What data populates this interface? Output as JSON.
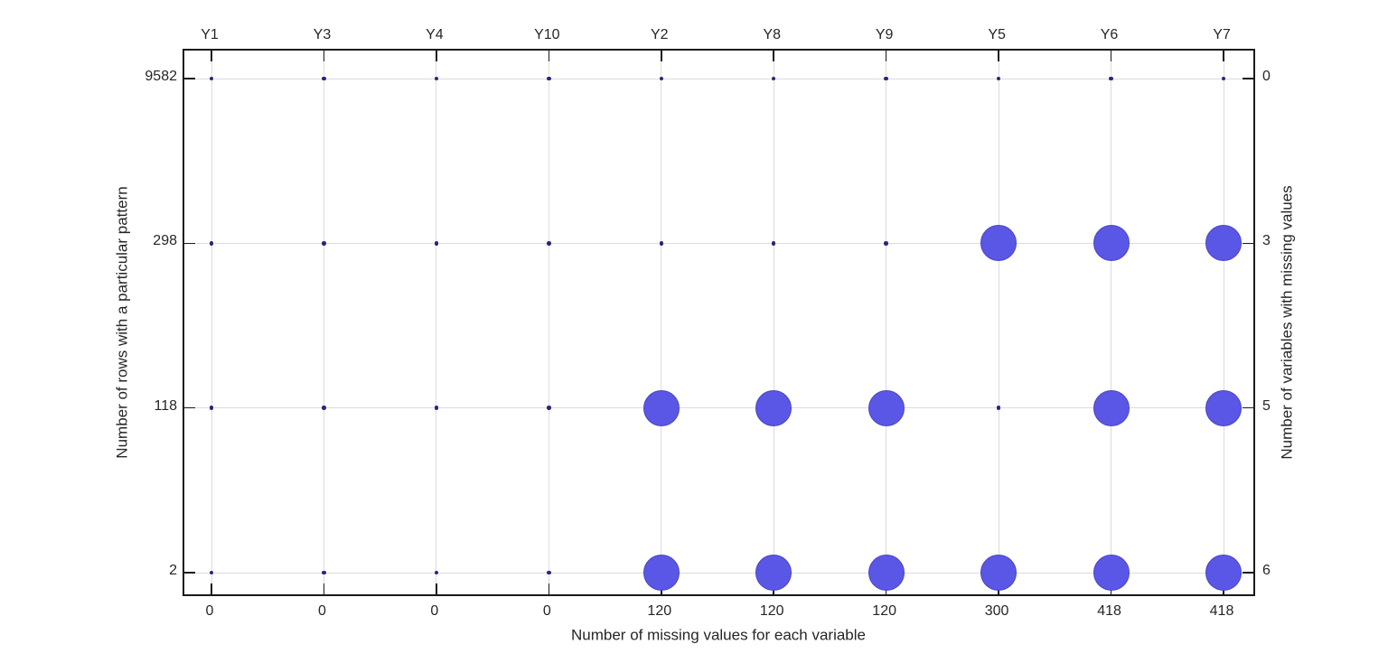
{
  "figure": {
    "background_color": "#ffffff",
    "axis_color": "#1a1a1a",
    "grid_color": "#dcdcdf",
    "text_color": "#262626"
  },
  "chart_data": {
    "type": "scatter",
    "description": "Missing-data pattern bubble plot: large circles mark variables missing in each pattern row, small dots mark observed variables",
    "variables": [
      "Y1",
      "Y3",
      "Y4",
      "Y10",
      "Y2",
      "Y8",
      "Y9",
      "Y5",
      "Y6",
      "Y7"
    ],
    "top_axis": {
      "label": "",
      "tick_labels": [
        "Y1",
        "Y3",
        "Y4",
        "Y10",
        "Y2",
        "Y8",
        "Y9",
        "Y5",
        "Y6",
        "Y7"
      ]
    },
    "bottom_axis": {
      "label": "Number of missing values for each variable",
      "tick_labels": [
        "0",
        "0",
        "0",
        "0",
        "120",
        "120",
        "120",
        "300",
        "418",
        "418"
      ]
    },
    "left_axis": {
      "label": "Number of rows with a particular pattern",
      "tick_labels": [
        "9582",
        "298",
        "118",
        "2"
      ]
    },
    "right_axis": {
      "label": "Number of variables with missing values",
      "tick_labels": [
        "0",
        "3",
        "5",
        "6"
      ]
    },
    "missing_per_variable": [
      0,
      0,
      0,
      0,
      120,
      120,
      120,
      300,
      418,
      418
    ],
    "pattern_row_counts": [
      9582,
      298,
      118,
      2
    ],
    "pattern_vars_missing": [
      0,
      3,
      5,
      6
    ],
    "missing_matrix": [
      [
        0,
        0,
        0,
        0,
        0,
        0,
        0,
        0,
        0,
        0
      ],
      [
        0,
        0,
        0,
        0,
        0,
        0,
        0,
        1,
        1,
        1
      ],
      [
        0,
        0,
        0,
        0,
        1,
        1,
        1,
        0,
        1,
        1
      ],
      [
        0,
        0,
        0,
        0,
        1,
        1,
        1,
        1,
        1,
        1
      ]
    ],
    "marker": {
      "missing_fill": "#5b57e6",
      "missing_border": "#4744c2",
      "missing_diameter": 40,
      "observed_fill": "#28287a",
      "observed_diameter": 4.5
    },
    "grid": true,
    "legend": false
  }
}
